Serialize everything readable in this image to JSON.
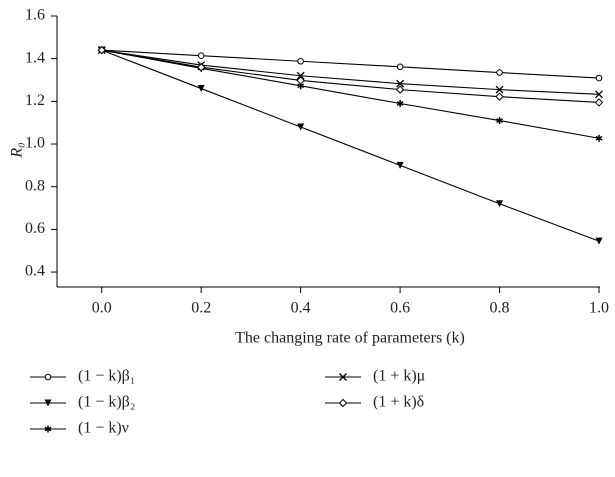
{
  "chart_data": {
    "type": "line",
    "x_label": "The changing rate of parameters (k)",
    "y_label": "R₀",
    "x": [
      0,
      0.2,
      0.4,
      0.6,
      0.8,
      1.0
    ],
    "xlim": [
      -0.09,
      1.0
    ],
    "ylim": [
      0.33,
      1.6
    ],
    "xticks": [
      {
        "value": 0,
        "label": "0.0"
      },
      0.2,
      0.4,
      0.6,
      0.8,
      {
        "value": 1,
        "label": "1.0"
      }
    ],
    "yticks": [
      0.4,
      0.6,
      0.8,
      {
        "value": 1,
        "label": "1.0"
      },
      1.2,
      1.4,
      1.6
    ],
    "grid": false,
    "series": [
      {
        "name": "(1 − k)β₁",
        "color": "#000000",
        "marker": "circle",
        "values": [
          1.44,
          1.414,
          1.388,
          1.362,
          1.335,
          1.309
        ]
      },
      {
        "name": "(1 − k)β₂",
        "color": "#000000",
        "marker": "triangle-down",
        "values": [
          1.44,
          1.26,
          1.08,
          0.9,
          0.72,
          0.545
        ]
      },
      {
        "name": "(1 − k)ν",
        "color": "#000000",
        "marker": "asterisk",
        "values": [
          1.44,
          1.355,
          1.273,
          1.19,
          1.11,
          1.027
        ]
      },
      {
        "name": "(1 + k)μ",
        "color": "#000000",
        "marker": "x",
        "values": [
          1.44,
          1.37,
          1.32,
          1.283,
          1.255,
          1.233
        ]
      },
      {
        "name": "(1 + k)δ",
        "color": "#000000",
        "marker": "diamond",
        "values": [
          1.44,
          1.36,
          1.298,
          1.255,
          1.222,
          1.195
        ]
      }
    ]
  }
}
